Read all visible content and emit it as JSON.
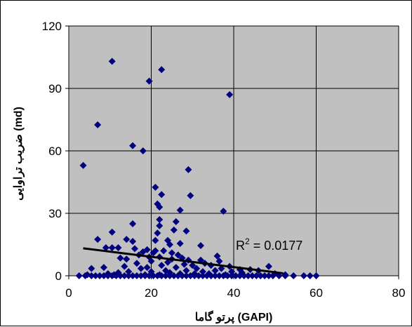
{
  "chart_data": {
    "type": "scatter",
    "title": "",
    "xlabel": "پرتو گاما (GAPI)",
    "ylabel": "ضریب تراوایی (md)",
    "xlim": [
      0,
      80
    ],
    "ylim": [
      0,
      120
    ],
    "xticks": [
      "0",
      "20",
      "40",
      "60",
      "80"
    ],
    "yticks": [
      "0",
      "30",
      "60",
      "90",
      "120"
    ],
    "grid": true,
    "legend": "none",
    "colors": {
      "plot_bg": "#c0c0c0",
      "marker": "#000080",
      "trendline": "#000000",
      "grid": "#000000"
    },
    "annotation": {
      "base": "R",
      "sup": "2",
      "rest": " = 0.0177"
    },
    "trendline": {
      "x": [
        3.5,
        52
      ],
      "y": [
        13.2,
        1.2
      ]
    },
    "points": [
      [
        10.5,
        103
      ],
      [
        22.5,
        99
      ],
      [
        19.5,
        93.5
      ],
      [
        39,
        87
      ],
      [
        7,
        72.5
      ],
      [
        15.5,
        62.5
      ],
      [
        18,
        60
      ],
      [
        3.5,
        53
      ],
      [
        29,
        51
      ],
      [
        21,
        42.5
      ],
      [
        22.5,
        39
      ],
      [
        29.5,
        38.5
      ],
      [
        21.5,
        34.5
      ],
      [
        22,
        33
      ],
      [
        27,
        31.5
      ],
      [
        37.5,
        31
      ],
      [
        22,
        27
      ],
      [
        26,
        26
      ],
      [
        15.5,
        25
      ],
      [
        22,
        24
      ],
      [
        25.5,
        22
      ],
      [
        28.5,
        21.5
      ],
      [
        10.5,
        21
      ],
      [
        21.5,
        20.5
      ],
      [
        14,
        17.5
      ],
      [
        7,
        17.5
      ],
      [
        21,
        17
      ],
      [
        24,
        17
      ],
      [
        15.5,
        16.5
      ],
      [
        27,
        15.5
      ],
      [
        24.5,
        15
      ],
      [
        32,
        14.5
      ],
      [
        9,
        13.5
      ],
      [
        10.5,
        13.5
      ],
      [
        12,
        13.5
      ],
      [
        16,
        13
      ],
      [
        19,
        12.5
      ],
      [
        21,
        12
      ],
      [
        23,
        12
      ],
      [
        18,
        11.5
      ],
      [
        25,
        11
      ],
      [
        20.5,
        11
      ],
      [
        26.5,
        10
      ],
      [
        17,
        10
      ],
      [
        36,
        9.5
      ],
      [
        19.5,
        9
      ],
      [
        22,
        9
      ],
      [
        27.5,
        8.5
      ],
      [
        12.5,
        8.5
      ],
      [
        14,
        8
      ],
      [
        25,
        8
      ],
      [
        29,
        7.5
      ],
      [
        32,
        7.5
      ],
      [
        36.5,
        7
      ],
      [
        20,
        7
      ],
      [
        24,
        6.5
      ],
      [
        16.5,
        6
      ],
      [
        33,
        6
      ],
      [
        28,
        5.5
      ],
      [
        22.5,
        5
      ],
      [
        30,
        5
      ],
      [
        34.5,
        5
      ],
      [
        13.5,
        4.5
      ],
      [
        39,
        4.5
      ],
      [
        48.5,
        4.5
      ],
      [
        8.5,
        4
      ],
      [
        19,
        4
      ],
      [
        26,
        4
      ],
      [
        31,
        3.5
      ],
      [
        37,
        3.5
      ],
      [
        5.5,
        3.5
      ],
      [
        17.5,
        3.5
      ],
      [
        41.5,
        3
      ],
      [
        44,
        3
      ],
      [
        35.5,
        2.5
      ],
      [
        23.5,
        2.5
      ],
      [
        28.5,
        2.5
      ],
      [
        46,
        2.5
      ],
      [
        14.5,
        2
      ],
      [
        20,
        2
      ],
      [
        32.5,
        2
      ],
      [
        39.5,
        2
      ],
      [
        12,
        1.5
      ],
      [
        24.5,
        1.5
      ],
      [
        42,
        1.5
      ],
      [
        9.5,
        1
      ],
      [
        27,
        1
      ],
      [
        30.5,
        1
      ],
      [
        34,
        1
      ],
      [
        50,
        1
      ],
      [
        4.5,
        0.5
      ],
      [
        18.5,
        0.5
      ],
      [
        22,
        0.5
      ],
      [
        38,
        0.5
      ],
      [
        52.5,
        0.5
      ],
      [
        11,
        0.5
      ],
      [
        2.5,
        0
      ],
      [
        4,
        0
      ],
      [
        5.5,
        0
      ],
      [
        6.5,
        0
      ],
      [
        7.5,
        0
      ],
      [
        8.5,
        0
      ],
      [
        9.5,
        0
      ],
      [
        10.5,
        0
      ],
      [
        11.5,
        0
      ],
      [
        12.5,
        0
      ],
      [
        13.5,
        0
      ],
      [
        14.5,
        0
      ],
      [
        15.5,
        0
      ],
      [
        16.5,
        0
      ],
      [
        17.5,
        0
      ],
      [
        18.5,
        0
      ],
      [
        19.5,
        0
      ],
      [
        20.5,
        0
      ],
      [
        21.5,
        0
      ],
      [
        22.5,
        0
      ],
      [
        23.5,
        0
      ],
      [
        24.5,
        0
      ],
      [
        25.5,
        0
      ],
      [
        26.5,
        0
      ],
      [
        27.5,
        0
      ],
      [
        28.5,
        0
      ],
      [
        29.5,
        0
      ],
      [
        30.5,
        0
      ],
      [
        31.5,
        0
      ],
      [
        32.5,
        0
      ],
      [
        33.5,
        0
      ],
      [
        34.5,
        0
      ],
      [
        35.5,
        0
      ],
      [
        36.5,
        0
      ],
      [
        37.5,
        0
      ],
      [
        38.5,
        0
      ],
      [
        39.5,
        0
      ],
      [
        40.5,
        0
      ],
      [
        41.5,
        0
      ],
      [
        42.5,
        0
      ],
      [
        43.5,
        0
      ],
      [
        44.5,
        0
      ],
      [
        45.5,
        0
      ],
      [
        46.5,
        0
      ],
      [
        47.5,
        0
      ],
      [
        48.5,
        0
      ],
      [
        49.5,
        0
      ],
      [
        51,
        0
      ],
      [
        52.5,
        0
      ],
      [
        54.5,
        0
      ],
      [
        57,
        0
      ],
      [
        58.5,
        0
      ],
      [
        60,
        0
      ]
    ]
  }
}
